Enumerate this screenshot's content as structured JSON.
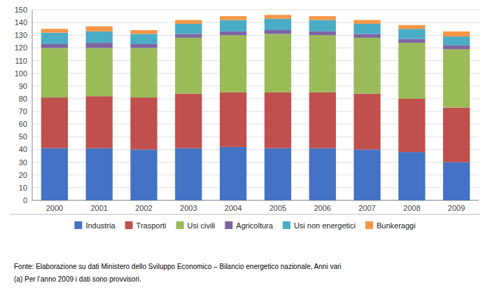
{
  "chart_data": {
    "type": "bar",
    "stacked": true,
    "categories": [
      "2000",
      "2001",
      "2002",
      "2003",
      "2004",
      "2005",
      "2006",
      "2007",
      "2008",
      "2009"
    ],
    "series": [
      {
        "name": "Industria",
        "color": "#4472C4",
        "values": [
          41,
          41,
          40,
          41,
          42,
          41,
          41,
          40,
          38,
          30
        ]
      },
      {
        "name": "Trasporti",
        "color": "#C0504D",
        "values": [
          40,
          41,
          41,
          43,
          43,
          44,
          44,
          44,
          42,
          43
        ]
      },
      {
        "name": "Usi civili",
        "color": "#9BBB59",
        "values": [
          39,
          38,
          39,
          44,
          45,
          46,
          45,
          44,
          44,
          46
        ]
      },
      {
        "name": "Agricoltura",
        "color": "#8064A2",
        "values": [
          3,
          4,
          3,
          3,
          3,
          3,
          3,
          3,
          3,
          3
        ]
      },
      {
        "name": "Usi non energetici",
        "color": "#4BACC6",
        "values": [
          9,
          9,
          8,
          8,
          9,
          9,
          9,
          8,
          8,
          7
        ]
      },
      {
        "name": "Bunkeraggi",
        "color": "#F79646",
        "values": [
          3,
          4,
          3,
          3,
          3,
          3,
          3,
          3,
          3,
          4
        ]
      }
    ],
    "ylim": [
      0,
      150
    ],
    "yticks": [
      0,
      10,
      20,
      30,
      40,
      50,
      60,
      70,
      80,
      90,
      100,
      110,
      120,
      130,
      140,
      150
    ],
    "grid": true,
    "legend": "bottom",
    "annotations": [
      "Fonte: Elaborazione su dati Ministero dello Sviluppo Economico – Bilancio energetico nazionale, Anni vari",
      "(a) Per l’anno 2009 i dati sono provvisori."
    ]
  }
}
